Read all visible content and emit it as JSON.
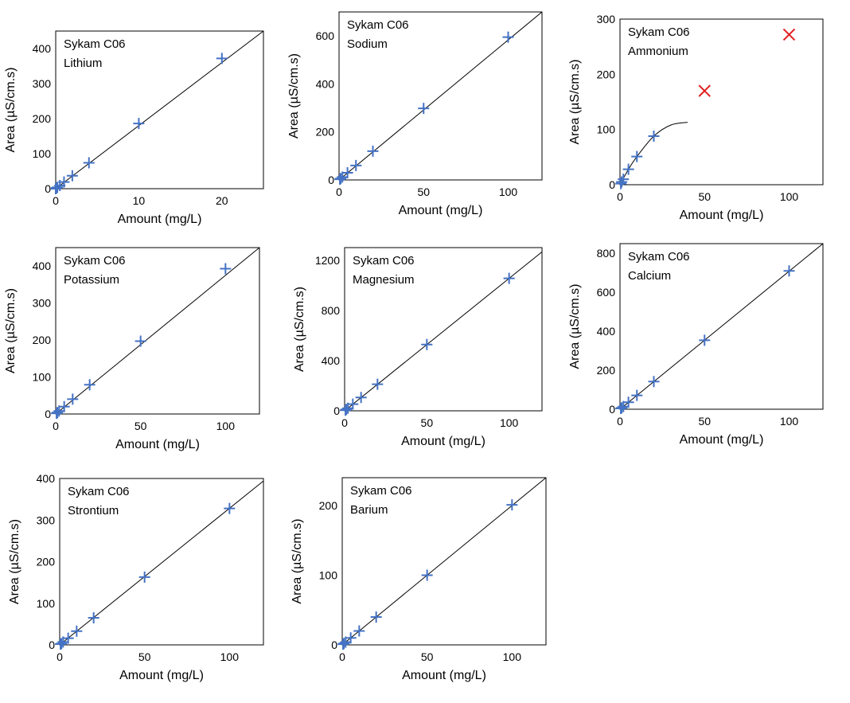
{
  "figure": {
    "panel_colors": {
      "marker": "#4472C4",
      "outlier": "#E02020",
      "line": "#000000"
    }
  },
  "chart_data": [
    {
      "type": "scatter",
      "instrument": "Sykam C06",
      "analyte": "Lithium",
      "xlabel": "Amount (mg/L)",
      "ylabel": "Area (µS/cm.s)",
      "xlim": [
        0,
        25
      ],
      "ylim": [
        0,
        450
      ],
      "xticks": [
        0,
        10,
        20
      ],
      "yticks": [
        0,
        100,
        200,
        300,
        400
      ],
      "points": [
        [
          0,
          0
        ],
        [
          0.1,
          2
        ],
        [
          0.2,
          4
        ],
        [
          0.5,
          9
        ],
        [
          1,
          19
        ],
        [
          2,
          37
        ],
        [
          4,
          74
        ],
        [
          10,
          186
        ],
        [
          20,
          372
        ]
      ],
      "fit": {
        "kind": "linear",
        "x": [
          0,
          25
        ],
        "y": [
          0,
          466
        ]
      }
    },
    {
      "type": "scatter",
      "instrument": "Sykam C06",
      "analyte": "Sodium",
      "xlabel": "Amount (mg/L)",
      "ylabel": "Area (µS/cm.s)",
      "xlim": [
        0,
        120
      ],
      "ylim": [
        0,
        700
      ],
      "xticks": [
        0,
        50,
        100
      ],
      "yticks": [
        0,
        200,
        400,
        600
      ],
      "points": [
        [
          0.5,
          3
        ],
        [
          1,
          6
        ],
        [
          2,
          12
        ],
        [
          5,
          30
        ],
        [
          10,
          60
        ],
        [
          20,
          120
        ],
        [
          50,
          298
        ],
        [
          100,
          595
        ]
      ],
      "fit": {
        "kind": "linear",
        "x": [
          0,
          120
        ],
        "y": [
          0,
          714
        ]
      }
    },
    {
      "type": "scatter",
      "instrument": "Sykam C06",
      "analyte": "Ammonium",
      "xlabel": "Amount (mg/L)",
      "ylabel": "Area (µS/cm.s)",
      "xlim": [
        0,
        120
      ],
      "ylim": [
        0,
        300
      ],
      "xticks": [
        0,
        50,
        100
      ],
      "yticks": [
        0,
        100,
        200,
        300
      ],
      "points": [
        [
          0.5,
          2
        ],
        [
          1,
          5
        ],
        [
          2,
          10
        ],
        [
          5,
          28
        ],
        [
          10,
          51
        ],
        [
          20,
          88
        ]
      ],
      "outliers": [
        [
          50,
          170
        ],
        [
          100,
          272
        ]
      ],
      "fit": {
        "kind": "curve",
        "x": [
          0,
          5,
          10,
          20,
          30,
          40
        ],
        "y": [
          0,
          28,
          51,
          88,
          108,
          113
        ]
      }
    },
    {
      "type": "scatter",
      "instrument": "Sykam C06",
      "analyte": "Potassium",
      "xlabel": "Amount (mg/L)",
      "ylabel": "Area (µS/cm.s)",
      "xlim": [
        0,
        120
      ],
      "ylim": [
        0,
        450
      ],
      "xticks": [
        0,
        50,
        100
      ],
      "yticks": [
        0,
        100,
        200,
        300,
        400
      ],
      "points": [
        [
          0.5,
          2
        ],
        [
          1,
          4
        ],
        [
          2,
          8
        ],
        [
          5,
          20
        ],
        [
          10,
          40
        ],
        [
          20,
          79
        ],
        [
          50,
          197
        ],
        [
          100,
          393
        ]
      ],
      "fit": {
        "kind": "linear",
        "x": [
          0,
          120
        ],
        "y": [
          0,
          472
        ]
      }
    },
    {
      "type": "scatter",
      "instrument": "Sykam C06",
      "analyte": "Magnesium",
      "xlabel": "Amount (mg/L)",
      "ylabel": "Area (µS/cm.s)",
      "xlim": [
        0,
        120
      ],
      "ylim": [
        0,
        1300
      ],
      "xticks": [
        0,
        50,
        100
      ],
      "yticks": [
        0,
        400,
        800,
        1200
      ],
      "points": [
        [
          0.5,
          5
        ],
        [
          1,
          11
        ],
        [
          2,
          21
        ],
        [
          5,
          53
        ],
        [
          10,
          106
        ],
        [
          20,
          212
        ],
        [
          50,
          528
        ],
        [
          100,
          1055
        ]
      ],
      "fit": {
        "kind": "linear",
        "x": [
          0,
          120
        ],
        "y": [
          0,
          1266
        ]
      }
    },
    {
      "type": "scatter",
      "instrument": "Sykam C06",
      "analyte": "Calcium",
      "xlabel": "Amount (mg/L)",
      "ylabel": "Area (µS/cm.s)",
      "xlim": [
        0,
        120
      ],
      "ylim": [
        0,
        850
      ],
      "xticks": [
        0,
        50,
        100
      ],
      "yticks": [
        0,
        200,
        400,
        600,
        800
      ],
      "points": [
        [
          0.5,
          4
        ],
        [
          1,
          7
        ],
        [
          2,
          14
        ],
        [
          5,
          36
        ],
        [
          10,
          71
        ],
        [
          20,
          142
        ],
        [
          50,
          354
        ],
        [
          100,
          710
        ]
      ],
      "fit": {
        "kind": "linear",
        "x": [
          0,
          120
        ],
        "y": [
          0,
          852
        ]
      }
    },
    {
      "type": "scatter",
      "instrument": "Sykam C06",
      "analyte": "Strontium",
      "xlabel": "Amount (mg/L)",
      "ylabel": "Area (µS/cm.s)",
      "xlim": [
        0,
        120
      ],
      "ylim": [
        0,
        400
      ],
      "xticks": [
        0,
        50,
        100
      ],
      "yticks": [
        0,
        100,
        200,
        300,
        400
      ],
      "points": [
        [
          0.5,
          2
        ],
        [
          1,
          3
        ],
        [
          2,
          7
        ],
        [
          5,
          16
        ],
        [
          10,
          33
        ],
        [
          20,
          65
        ],
        [
          50,
          163
        ],
        [
          100,
          328
        ]
      ],
      "fit": {
        "kind": "linear",
        "x": [
          0,
          120
        ],
        "y": [
          0,
          394
        ]
      }
    },
    {
      "type": "scatter",
      "instrument": "Sykam C06",
      "analyte": "Barium",
      "xlabel": "Amount (mg/L)",
      "ylabel": "Area (µS/cm.s)",
      "xlim": [
        0,
        120
      ],
      "ylim": [
        0,
        240
      ],
      "xticks": [
        0,
        50,
        100
      ],
      "yticks": [
        0,
        100,
        200
      ],
      "points": [
        [
          0.5,
          1
        ],
        [
          1,
          2
        ],
        [
          2,
          4
        ],
        [
          5,
          10
        ],
        [
          10,
          20
        ],
        [
          20,
          40
        ],
        [
          50,
          100
        ],
        [
          100,
          201
        ]
      ],
      "fit": {
        "kind": "linear",
        "x": [
          0,
          120
        ],
        "y": [
          0,
          241
        ]
      }
    }
  ]
}
